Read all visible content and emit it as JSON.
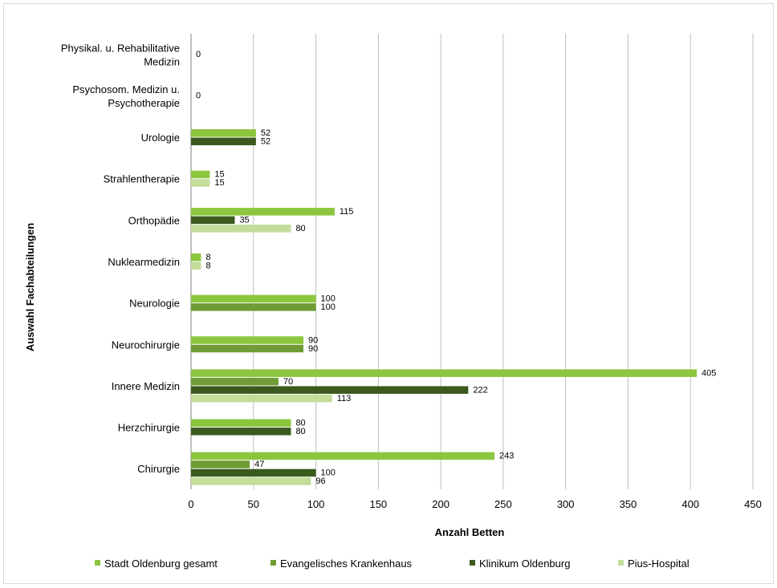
{
  "colors": {
    "stadt": "#8cc63e",
    "ev": "#6f9c35",
    "klinikum": "#3b5a1d",
    "pius": "#c3dd9a",
    "grid": "#bfbfbf",
    "axis": "#7f7f7f",
    "text": "#000000"
  },
  "chart_data": {
    "type": "bar",
    "orientation": "horizontal",
    "title": "",
    "xlabel": "Anzahl Betten",
    "ylabel": "Auswahl Fachabteilungen",
    "xlim": [
      0,
      450
    ],
    "xticks": [
      0,
      50,
      100,
      150,
      200,
      250,
      300,
      350,
      400,
      450
    ],
    "grid": "vertical",
    "legend_position": "bottom",
    "categories": [
      "Physikal. u. Rehabilitative Medizin",
      "Psychosom. Medizin u. Psychotherapie",
      "Urologie",
      "Strahlentherapie",
      "Orthopädie",
      "Nuklearmedizin",
      "Neurologie",
      "Neurochirurgie",
      "Innere Medizin",
      "Herzchirurgie",
      "Chirurgie"
    ],
    "category_label_lines": [
      [
        "Physikal. u. Rehabilitative",
        "Medizin"
      ],
      [
        "Psychosom. Medizin u.",
        "Psychotherapie"
      ],
      [
        "Urologie"
      ],
      [
        "Strahlentherapie"
      ],
      [
        "Orthopädie"
      ],
      [
        "Nuklearmedizin"
      ],
      [
        "Neurologie"
      ],
      [
        "Neurochirurgie"
      ],
      [
        "Innere Medizin"
      ],
      [
        "Herzchirurgie"
      ],
      [
        "Chirurgie"
      ]
    ],
    "series": [
      {
        "name": "Stadt Oldenburg gesamt",
        "color_key": "stadt",
        "values": [
          0,
          0,
          52,
          15,
          115,
          8,
          100,
          90,
          405,
          80,
          243
        ]
      },
      {
        "name": "Evangelisches Krankenhaus",
        "color_key": "ev",
        "values": [
          null,
          null,
          null,
          null,
          null,
          null,
          100,
          90,
          70,
          null,
          47
        ]
      },
      {
        "name": "Klinikum Oldenburg",
        "color_key": "klinikum",
        "values": [
          null,
          null,
          52,
          null,
          35,
          null,
          null,
          null,
          222,
          80,
          100
        ]
      },
      {
        "name": "Pius-Hospital",
        "color_key": "pius",
        "values": [
          null,
          null,
          null,
          15,
          80,
          8,
          null,
          null,
          113,
          null,
          96
        ]
      }
    ]
  }
}
